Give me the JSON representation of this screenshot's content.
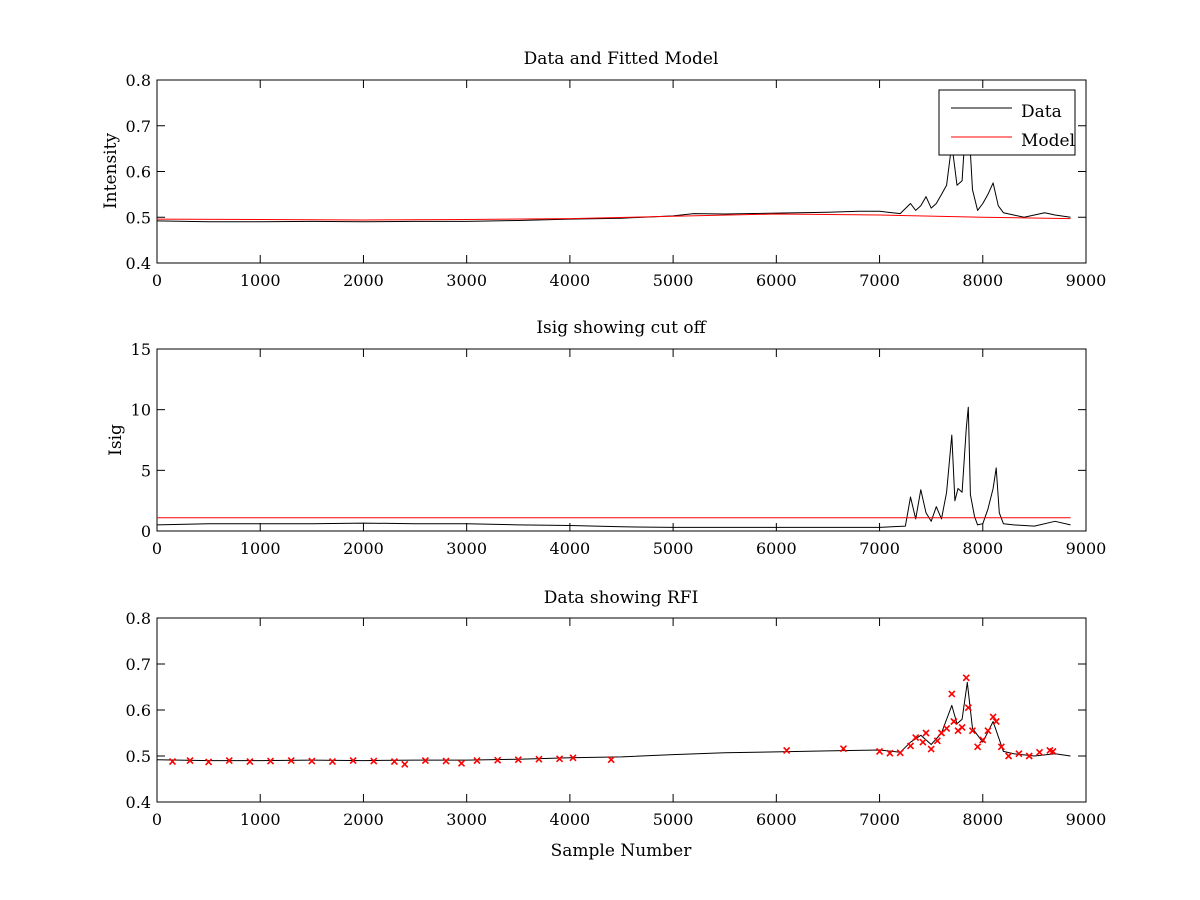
{
  "chart_data": [
    {
      "type": "line",
      "title": "Data and Fitted Model",
      "xlabel": "",
      "ylabel": "Intensity",
      "xlim": [
        0,
        9000
      ],
      "ylim": [
        0.4,
        0.8
      ],
      "xticks": [
        0,
        1000,
        2000,
        3000,
        4000,
        5000,
        6000,
        7000,
        8000,
        9000
      ],
      "yticks": [
        0.4,
        0.5,
        0.6,
        0.7,
        0.8
      ],
      "ytick_labels": [
        "0.4",
        "0.5",
        "0.6",
        "0.7",
        "0.8"
      ],
      "grid": false,
      "legend_position": "top-right",
      "series": [
        {
          "name": "Data",
          "color": "#000000",
          "x": [
            0,
            500,
            1000,
            1500,
            2000,
            2500,
            3000,
            3500,
            4000,
            4500,
            5000,
            5200,
            5500,
            6000,
            6500,
            6800,
            7000,
            7200,
            7300,
            7350,
            7400,
            7450,
            7500,
            7550,
            7600,
            7650,
            7700,
            7750,
            7800,
            7850,
            7900,
            7950,
            8000,
            8050,
            8100,
            8150,
            8200,
            8300,
            8400,
            8500,
            8600,
            8700,
            8850
          ],
          "y": [
            0.492,
            0.49,
            0.49,
            0.491,
            0.49,
            0.491,
            0.491,
            0.493,
            0.496,
            0.498,
            0.503,
            0.508,
            0.507,
            0.509,
            0.511,
            0.513,
            0.513,
            0.508,
            0.53,
            0.515,
            0.525,
            0.545,
            0.52,
            0.53,
            0.55,
            0.57,
            0.66,
            0.57,
            0.58,
            0.76,
            0.56,
            0.515,
            0.53,
            0.55,
            0.575,
            0.525,
            0.51,
            0.505,
            0.5,
            0.505,
            0.51,
            0.505,
            0.5
          ]
        },
        {
          "name": "Model",
          "color": "#ff0000",
          "x": [
            0,
            1000,
            2000,
            3000,
            4000,
            5000,
            6000,
            7000,
            8000,
            8850
          ],
          "y": [
            0.496,
            0.495,
            0.494,
            0.495,
            0.497,
            0.502,
            0.507,
            0.505,
            0.5,
            0.497
          ]
        }
      ]
    },
    {
      "type": "line",
      "title": "Isig showing cut off",
      "xlabel": "",
      "ylabel": "Isig",
      "xlim": [
        0,
        9000
      ],
      "ylim": [
        0,
        15
      ],
      "xticks": [
        0,
        1000,
        2000,
        3000,
        4000,
        5000,
        6000,
        7000,
        8000,
        9000
      ],
      "yticks": [
        0,
        5,
        10,
        15
      ],
      "ytick_labels": [
        "0",
        "5",
        "10",
        "15"
      ],
      "grid": false,
      "series": [
        {
          "color": "#000000",
          "x": [
            0,
            500,
            1000,
            1500,
            2000,
            2500,
            3000,
            3500,
            4000,
            4500,
            5000,
            5500,
            6000,
            6500,
            7000,
            7250,
            7300,
            7350,
            7400,
            7450,
            7500,
            7550,
            7600,
            7650,
            7700,
            7730,
            7760,
            7800,
            7840,
            7860,
            7880,
            7920,
            7950,
            8000,
            8050,
            8100,
            8130,
            8160,
            8200,
            8300,
            8500,
            8700,
            8850
          ],
          "y": [
            0.5,
            0.6,
            0.6,
            0.6,
            0.65,
            0.6,
            0.6,
            0.5,
            0.45,
            0.35,
            0.3,
            0.3,
            0.3,
            0.3,
            0.3,
            0.4,
            2.8,
            1.0,
            3.4,
            1.5,
            0.8,
            2.0,
            1.0,
            3.2,
            7.9,
            2.5,
            3.5,
            3.2,
            8.5,
            10.2,
            3.0,
            1.2,
            0.5,
            0.6,
            1.8,
            3.5,
            5.2,
            1.5,
            0.6,
            0.5,
            0.4,
            0.8,
            0.5
          ]
        },
        {
          "color": "#ff0000",
          "x": [
            0,
            8850
          ],
          "y": [
            1.1,
            1.1
          ]
        }
      ]
    },
    {
      "type": "line",
      "title": "Data showing RFI",
      "xlabel": "Sample Number",
      "ylabel": "",
      "xlim": [
        0,
        9000
      ],
      "ylim": [
        0.4,
        0.8
      ],
      "xticks": [
        0,
        1000,
        2000,
        3000,
        4000,
        5000,
        6000,
        7000,
        8000,
        9000
      ],
      "yticks": [
        0.4,
        0.5,
        0.6,
        0.7,
        0.8
      ],
      "ytick_labels": [
        "0.4",
        "0.5",
        "0.6",
        "0.7",
        "0.8"
      ],
      "grid": false,
      "series": [
        {
          "color": "#000000",
          "x": [
            0,
            500,
            1000,
            1500,
            2000,
            2500,
            3000,
            3500,
            4000,
            4500,
            5000,
            5500,
            6000,
            6500,
            7000,
            7200,
            7300,
            7400,
            7500,
            7600,
            7700,
            7750,
            7800,
            7850,
            7900,
            8000,
            8100,
            8200,
            8300,
            8500,
            8700,
            8850
          ],
          "y": [
            0.492,
            0.49,
            0.49,
            0.491,
            0.49,
            0.491,
            0.491,
            0.493,
            0.496,
            0.498,
            0.503,
            0.507,
            0.509,
            0.511,
            0.513,
            0.508,
            0.53,
            0.545,
            0.525,
            0.55,
            0.61,
            0.57,
            0.58,
            0.66,
            0.56,
            0.53,
            0.575,
            0.51,
            0.505,
            0.5,
            0.505,
            0.5
          ]
        },
        {
          "color": "#ff0000",
          "marker": "x",
          "x": [
            150,
            320,
            500,
            700,
            900,
            1100,
            1300,
            1500,
            1700,
            1900,
            2100,
            2300,
            2400,
            2600,
            2800,
            2950,
            3100,
            3300,
            3500,
            3700,
            3900,
            4030,
            4400,
            6100,
            6650,
            7000,
            7100,
            7200,
            7300,
            7350,
            7420,
            7450,
            7500,
            7560,
            7600,
            7650,
            7700,
            7720,
            7760,
            7800,
            7840,
            7860,
            7900,
            7950,
            8000,
            8050,
            8100,
            8130,
            8180,
            8250,
            8350,
            8450,
            8550,
            8650,
            8680
          ],
          "y": [
            0.488,
            0.49,
            0.487,
            0.49,
            0.488,
            0.489,
            0.49,
            0.489,
            0.488,
            0.49,
            0.489,
            0.488,
            0.482,
            0.49,
            0.489,
            0.484,
            0.49,
            0.491,
            0.492,
            0.493,
            0.494,
            0.496,
            0.492,
            0.512,
            0.516,
            0.51,
            0.506,
            0.507,
            0.522,
            0.54,
            0.53,
            0.55,
            0.515,
            0.533,
            0.55,
            0.56,
            0.635,
            0.575,
            0.555,
            0.562,
            0.67,
            0.605,
            0.555,
            0.52,
            0.535,
            0.555,
            0.585,
            0.575,
            0.52,
            0.5,
            0.505,
            0.5,
            0.508,
            0.512,
            0.51
          ]
        }
      ]
    }
  ]
}
